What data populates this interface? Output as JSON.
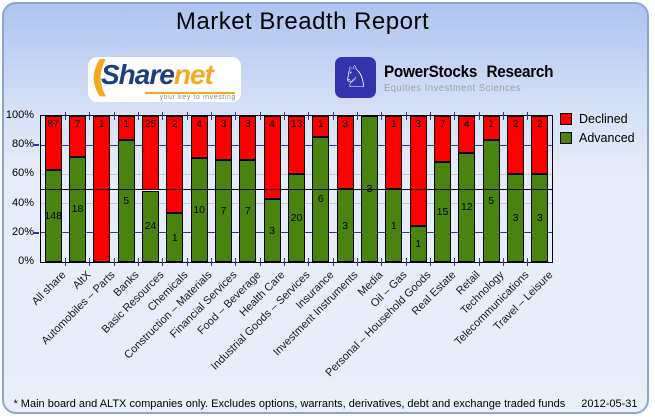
{
  "header": {
    "title": "Market Breadth Report"
  },
  "logos": {
    "sharenet": {
      "text_primary": "Share",
      "text_secondary": "net",
      "tagline": "your key to investing",
      "swoosh_glyph": "(",
      "accent_color": "#f7a823",
      "navy_color": "#1e3f7d"
    },
    "powerstocks": {
      "title": "PowerStocks Research",
      "subtitle": "Equities Investment Sciences",
      "knight_glyph": "♘",
      "box_color": "#3434ae"
    }
  },
  "chart_data": {
    "type": "bar",
    "stacked": true,
    "title": "Market Breadth Report",
    "categories": [
      "All share",
      "AltX",
      "Automobiles – Parts",
      "Banks",
      "Basic Resources",
      "Chemicals",
      "Construction – Materials",
      "Financial Services",
      "Food – Beverage",
      "Health Care",
      "Industrial Goods – Services",
      "Insurance",
      "Investment Instruments",
      "Media",
      "Oil – Gas",
      "Personal – Household Goods",
      "Real Estate",
      "Retail",
      "Technology",
      "Telecommunications",
      "Travel – Leisure"
    ],
    "series": [
      {
        "name": "Declined",
        "color": "#fc0000",
        "values": [
          87,
          7,
          1,
          1,
          25,
          2,
          4,
          3,
          3,
          4,
          13,
          1,
          3,
          0,
          1,
          3,
          7,
          4,
          1,
          2,
          2
        ]
      },
      {
        "name": "Advanced",
        "color": "#4a8410",
        "values": [
          148,
          18,
          0,
          5,
          24,
          1,
          10,
          7,
          7,
          3,
          20,
          6,
          3,
          3,
          1,
          1,
          15,
          12,
          5,
          3,
          3
        ]
      }
    ],
    "y_ticks": [
      "0%",
      "20%",
      "40%",
      "60%",
      "80%",
      "100%"
    ],
    "ylim": [
      0,
      100
    ],
    "bar_scale": "percent of total (advanced+declined) per category",
    "gridlines": [
      {
        "pct": 20,
        "color": "#333399"
      },
      {
        "pct": 40,
        "color": "#c6c6c6"
      },
      {
        "pct": 60,
        "color": "#c6c6c6"
      },
      {
        "pct": 80,
        "color": "#333399"
      }
    ],
    "reference_line": {
      "pct": 50,
      "color": "#000000"
    },
    "legend": {
      "position": "top-right",
      "entries": [
        "Declined",
        "Advanced"
      ]
    }
  },
  "footer": {
    "note": "* Main board and ALTX companies only. Excludes options, warrants, derivatives, debt and exchange traded funds",
    "date": "2012-05-31"
  }
}
